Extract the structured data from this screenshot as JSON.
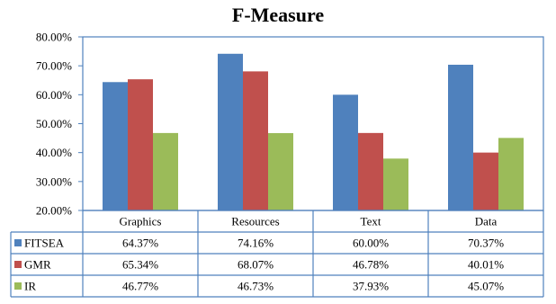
{
  "chart_data": {
    "type": "bar",
    "title": "F-Measure",
    "categories": [
      "Graphics",
      "Resources",
      "Text",
      "Data"
    ],
    "series": [
      {
        "name": "FITSEA",
        "color": "#4F81BD",
        "values": [
          64.37,
          74.16,
          60.0,
          70.37
        ],
        "labels": [
          "64.37%",
          "74.16%",
          "60.00%",
          "70.37%"
        ]
      },
      {
        "name": "GMR",
        "color": "#C0504D",
        "values": [
          65.34,
          68.07,
          46.78,
          40.01
        ],
        "labels": [
          "65.34%",
          "68.07%",
          "46.78%",
          "40.01%"
        ]
      },
      {
        "name": "IR",
        "color": "#9BBB59",
        "values": [
          46.77,
          46.73,
          37.93,
          45.07
        ],
        "labels": [
          "46.77%",
          "46.73%",
          "37.93%",
          "45.07%"
        ]
      }
    ],
    "ylim": [
      20,
      80
    ],
    "yticks": [
      "20.00%",
      "30.00%",
      "40.00%",
      "50.00%",
      "60.00%",
      "70.00%",
      "80.00%"
    ],
    "grid": false,
    "legend": "data table"
  }
}
